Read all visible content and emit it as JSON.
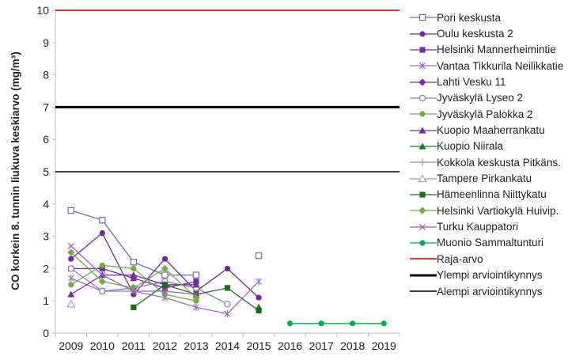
{
  "chart_data": {
    "type": "line",
    "ylabel": "CO korkein 8. tunnin liukuva keskiarvo (mg/m³)",
    "ylim": [
      0,
      10
    ],
    "yticks": [
      0,
      1,
      2,
      3,
      4,
      5,
      6,
      7,
      8,
      9,
      10
    ],
    "categories": [
      "2009",
      "2010",
      "2011",
      "2012",
      "2013",
      "2014",
      "2015",
      "2016",
      "2017",
      "2018",
      "2019"
    ],
    "series": [
      {
        "name": "Pori keskusta",
        "color": "#7a68b0",
        "marker": "square-open",
        "values": [
          3.8,
          3.5,
          2.2,
          1.8,
          1.8,
          null,
          2.4,
          null,
          null,
          null,
          null
        ]
      },
      {
        "name": "Oulu keskusta 2",
        "color": "#6a2c9a",
        "marker": "circle",
        "values": [
          2.3,
          3.1,
          1.2,
          2.3,
          1.3,
          2.0,
          1.1,
          null,
          null,
          null,
          null
        ]
      },
      {
        "name": "Helsinki Mannerheimintie",
        "color": "#7030a0",
        "marker": "square",
        "values": [
          2.0,
          2.0,
          1.7,
          1.4,
          1.6,
          null,
          null,
          null,
          null,
          null,
          null
        ]
      },
      {
        "name": "Vantaa Tikkurila Neilikkatie",
        "color": "#9b6fc0",
        "marker": "star",
        "values": [
          1.7,
          1.3,
          1.3,
          1.1,
          0.8,
          0.6,
          1.6,
          null,
          null,
          null,
          null
        ]
      },
      {
        "name": "Lahti Vesku 11",
        "color": "#7030a0",
        "marker": "diamond",
        "values": [
          null,
          null,
          null,
          null,
          null,
          null,
          null,
          null,
          null,
          null,
          null
        ]
      },
      {
        "name": "Jyväskylä Lyseo 2",
        "color": "#8a7cc0",
        "marker": "circle-open",
        "values": [
          2.0,
          1.3,
          1.4,
          1.6,
          1.4,
          0.9,
          null,
          null,
          null,
          null,
          null
        ]
      },
      {
        "name": "Jyväskylä Palokka 2",
        "color": "#70ad47",
        "marker": "circle",
        "values": [
          1.5,
          2.1,
          2.0,
          1.2,
          1.0,
          null,
          null,
          null,
          null,
          null,
          null
        ]
      },
      {
        "name": "Kuopio Maaherrankatu",
        "color": "#7030a0",
        "marker": "triangle",
        "values": [
          1.2,
          1.8,
          1.8,
          1.5,
          1.5,
          null,
          null,
          null,
          null,
          null,
          null
        ]
      },
      {
        "name": "Kuopio Niirala",
        "color": "#1e7b1e",
        "marker": "triangle",
        "values": [
          null,
          null,
          null,
          null,
          null,
          null,
          0.8,
          null,
          null,
          null,
          null
        ]
      },
      {
        "name": "Kokkola keskusta Pitkäns.",
        "color": "#9b8fd0",
        "marker": "plus",
        "values": [
          null,
          null,
          null,
          null,
          null,
          null,
          null,
          null,
          null,
          null,
          null
        ]
      },
      {
        "name": "Tampere Pirkankatu",
        "color": "#9b8fd0",
        "marker": "triangle-open",
        "values": [
          0.9,
          null,
          null,
          null,
          null,
          null,
          null,
          null,
          null,
          null,
          null
        ]
      },
      {
        "name": "Hämeenlinna Niittykatu",
        "color": "#1e6b1e",
        "marker": "square",
        "values": [
          null,
          null,
          0.8,
          1.5,
          1.2,
          1.4,
          0.7,
          null,
          null,
          null,
          null
        ]
      },
      {
        "name": "Helsinki Vartiokylä Huivip.",
        "color": "#70ad47",
        "marker": "diamond",
        "values": [
          2.5,
          1.6,
          1.4,
          2.0,
          1.1,
          null,
          null,
          null,
          null,
          null,
          null
        ]
      },
      {
        "name": "Turku Kauppatori",
        "color": "#9b5fc0",
        "marker": "x",
        "values": [
          2.7,
          1.8,
          1.3,
          1.3,
          1.2,
          null,
          null,
          null,
          null,
          null,
          null
        ]
      },
      {
        "name": "Muonio Sammaltunturi",
        "color": "#00b050",
        "marker": "circle",
        "values": [
          null,
          null,
          null,
          null,
          null,
          null,
          null,
          0.3,
          0.3,
          0.3,
          0.3
        ]
      }
    ],
    "reference_lines": [
      {
        "name": "Raja-arvo",
        "value": 10,
        "color": "#e53935",
        "width": 2
      },
      {
        "name": "Ylempi arviointikynnys",
        "value": 7,
        "color": "#000000",
        "width": 3
      },
      {
        "name": "Alempi arviointikynnys",
        "value": 5,
        "color": "#000000",
        "width": 1.5
      }
    ],
    "legend_position": "right"
  }
}
